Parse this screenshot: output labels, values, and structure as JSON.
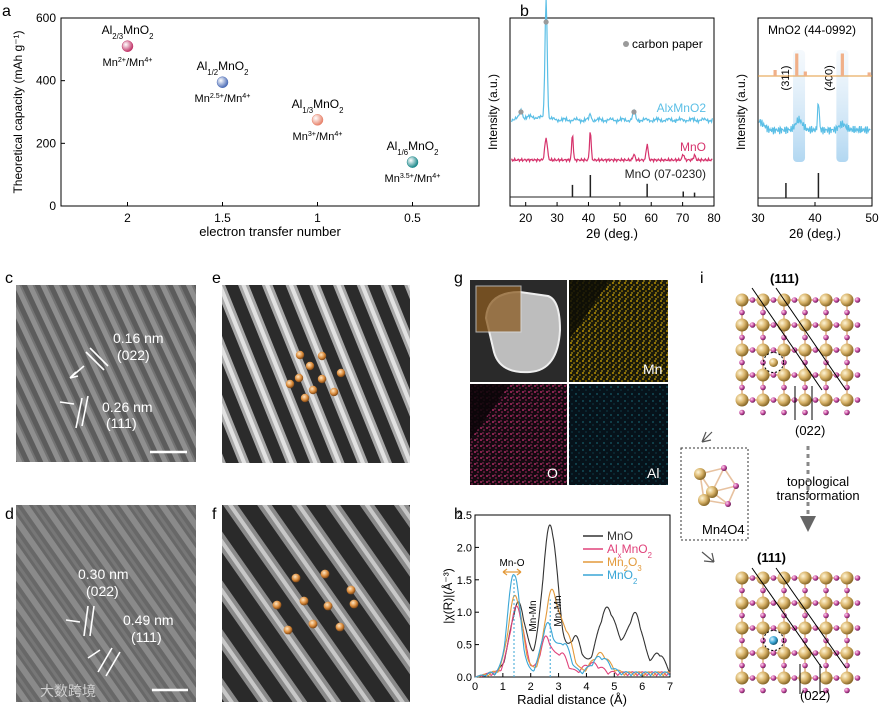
{
  "panels": {
    "a": {
      "letter": "a",
      "chart_data": {
        "type": "scatter",
        "xlabel": "electron transfer number",
        "ylabel": "Theoretical capacity (mAh g⁻¹)",
        "xlim": [
          2.35,
          0.15
        ],
        "ylim": [
          0,
          600
        ],
        "xticks": [
          "2",
          "1.5",
          "1",
          "0.5"
        ],
        "xtick_values": [
          2,
          1.5,
          1,
          0.5
        ],
        "yticks": [
          0,
          200,
          400,
          600
        ],
        "points": [
          {
            "x": 2,
            "y": 510,
            "compound": "Al2/3MnO2",
            "couple": "Mn2+/Mn4+",
            "color": "#c2386b"
          },
          {
            "x": 1.5,
            "y": 395,
            "compound": "Al1/2MnO2",
            "couple": "Mn2.5+/Mn4+",
            "color": "#4f6fb8"
          },
          {
            "x": 1,
            "y": 275,
            "compound": "Al1/3MnO2",
            "couple": "Mn3+/Mn4+",
            "color": "#e8856e"
          },
          {
            "x": 0.5,
            "y": 140,
            "compound": "Al1/6MnO2",
            "couple": "Mn3.5+/Mn4+",
            "color": "#1f8a8c"
          }
        ]
      }
    },
    "b": {
      "letter": "b",
      "left": {
        "chart_data": {
          "type": "line",
          "xlabel": "2θ (deg.)",
          "ylabel": "Intensity (a.u.)",
          "xlim": [
            15,
            80
          ],
          "xticks": [
            20,
            30,
            40,
            50,
            60,
            70,
            80
          ],
          "legend_note": "carbon paper",
          "series": [
            {
              "name": "AlxMnO2",
              "color": "#5bbfe6",
              "type": "pattern"
            },
            {
              "name": "MnO",
              "color": "#d6336c",
              "type": "pattern"
            },
            {
              "name": "MnO (07-0230)",
              "color": "#222222",
              "type": "reference",
              "peaks": [
                [
                  34.9,
                  0.55
                ],
                [
                  40.6,
                  1.0
                ],
                [
                  58.7,
                  0.6
                ],
                [
                  70.2,
                  0.25
                ],
                [
                  73.8,
                  0.2
                ]
              ]
            }
          ],
          "carbon_markers": [
            18.5,
            26.5,
            54.5
          ]
        }
      },
      "right": {
        "chart_data": {
          "type": "line",
          "xlabel": "2θ (deg.)",
          "ylabel": "Intensity (a.u.)",
          "xlim": [
            30,
            50
          ],
          "xticks": [
            30,
            40,
            50
          ],
          "ref_label": "MnO2 (44-0992)",
          "highlights": [
            {
              "label": "(311)",
              "x": 37.2
            },
            {
              "label": "(400)",
              "x": 44.8
            }
          ],
          "ref_peaks": [
            [
              33.0,
              0.2
            ],
            [
              36.8,
              0.75
            ],
            [
              38.3,
              0.15
            ],
            [
              44.8,
              0.75
            ],
            [
              49.5,
              0.12
            ]
          ],
          "mno_peaks": [
            [
              34.9,
              0.6
            ],
            [
              40.6,
              1.0
            ]
          ]
        }
      }
    },
    "c": {
      "letter": "c",
      "labels": [
        "0.16 nm",
        "(022)",
        "0.26 nm",
        "(111)"
      ]
    },
    "d": {
      "letter": "d",
      "labels": [
        "0.30 nm",
        "(022)",
        "0.49 nm",
        "(111)"
      ]
    },
    "e": {
      "letter": "e"
    },
    "f": {
      "letter": "f"
    },
    "g": {
      "letter": "g",
      "maps": [
        "Mn",
        "O",
        "Al"
      ],
      "colors": {
        "Mn": "#e0b000",
        "O": "#d8327a",
        "Al": "#27a9b8"
      }
    },
    "h": {
      "letter": "h",
      "chart_data": {
        "type": "line",
        "xlabel": "Radial distance (Å)",
        "ylabel": "|χ(R)|(Å⁻³)",
        "xlim": [
          0,
          7
        ],
        "ylim": [
          0,
          2.5
        ],
        "xticks": [
          0,
          1,
          2,
          3,
          4,
          5,
          6,
          7
        ],
        "yticks": [
          0.0,
          0.5,
          1.0,
          1.5,
          2.0,
          2.5
        ],
        "annotations": [
          "Mn-O",
          "Mn-Mn",
          "Mn-Mn"
        ],
        "series": [
          {
            "name": "MnO",
            "color": "#333333",
            "peaks": [
              [
                1.55,
                1.08,
                0.28
              ],
              [
                2.7,
                2.28,
                0.28
              ],
              [
                3.6,
                0.55,
                0.22
              ],
              [
                4.75,
                1.0,
                0.35
              ],
              [
                5.75,
                0.9,
                0.28
              ],
              [
                6.6,
                0.3,
                0.2
              ]
            ]
          },
          {
            "name": "AlxMnO2",
            "color": "#e0427a",
            "peaks": [
              [
                1.5,
                1.02,
                0.25
              ],
              [
                2.55,
                0.55,
                0.2
              ],
              [
                3.1,
                0.3,
                0.2
              ],
              [
                4.2,
                0.15,
                0.3
              ]
            ]
          },
          {
            "name": "Mn2O3",
            "color": "#e39a3b",
            "peaks": [
              [
                1.45,
                1.2,
                0.25
              ],
              [
                2.75,
                1.25,
                0.25
              ],
              [
                3.3,
                0.55,
                0.22
              ],
              [
                4.5,
                0.3,
                0.3
              ]
            ]
          },
          {
            "name": "MnO2",
            "color": "#3aa6d6",
            "peaks": [
              [
                1.4,
                1.55,
                0.22
              ],
              [
                2.6,
                0.75,
                0.22
              ],
              [
                3.2,
                0.45,
                0.22
              ],
              [
                4.5,
                0.25,
                0.3
              ]
            ]
          }
        ]
      }
    },
    "i": {
      "letter": "i",
      "labels": [
        "(111)",
        "(022)",
        "topological",
        "transformation",
        "Mn4O4",
        "(111)",
        "(022)"
      ]
    }
  },
  "watermark": "大数跨境"
}
